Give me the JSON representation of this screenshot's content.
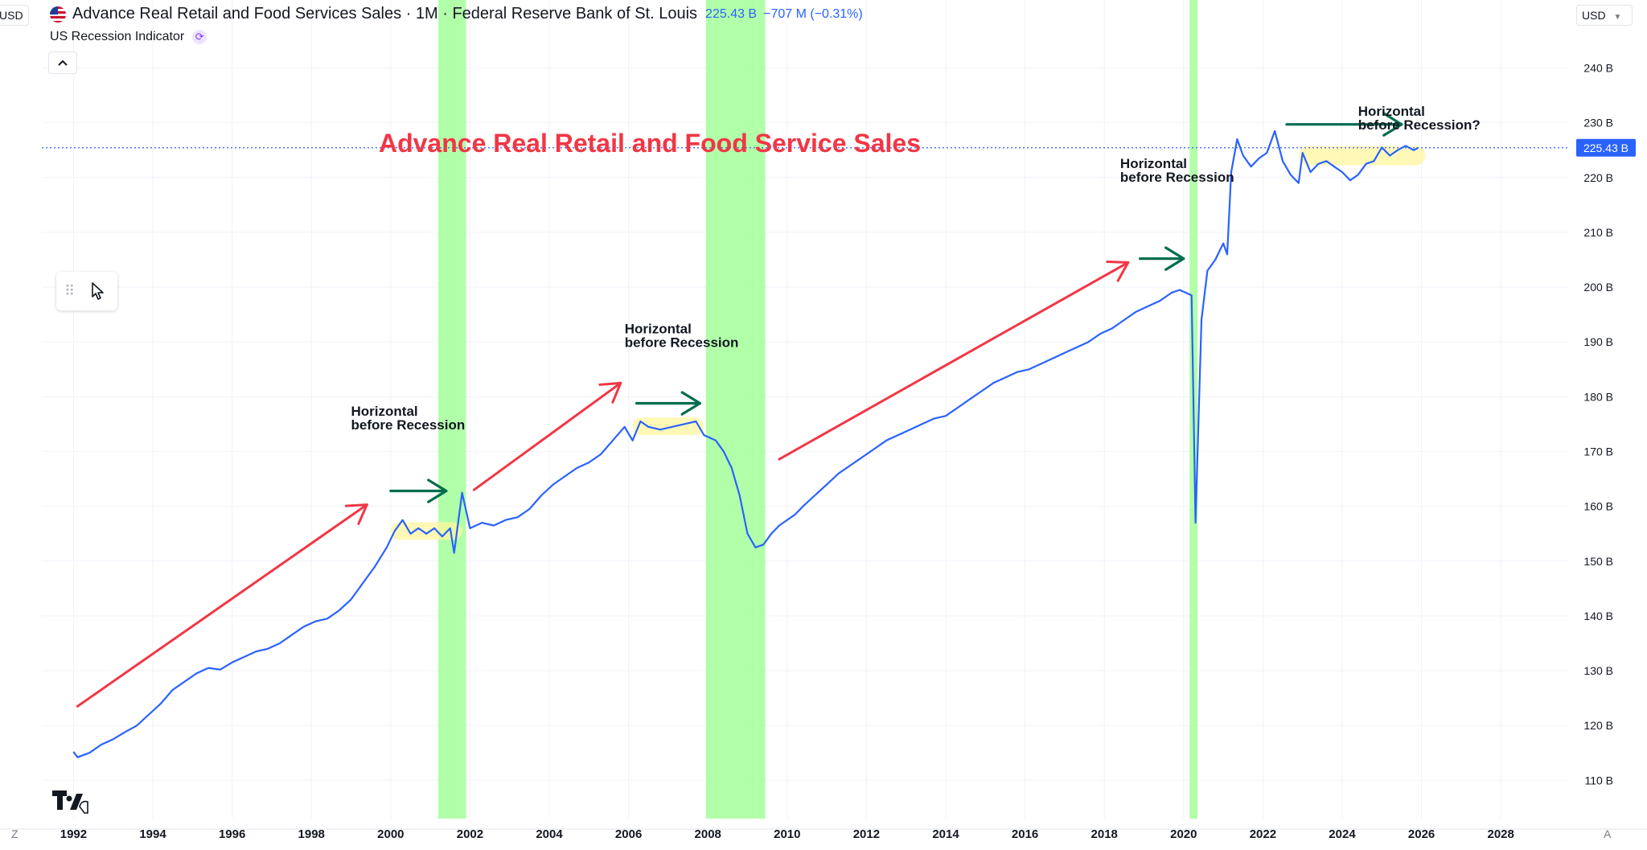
{
  "header": {
    "currency_left": "USD",
    "currency_right": "USD",
    "title": "Advance Real Retail and Food Services Sales · 1M · Federal Reserve Bank of St. Louis",
    "last_value": "225.43 B",
    "change": "−707 M (−0.31%)",
    "indicator": "US Recession Indicator"
  },
  "corners": {
    "bottom_left": "Z",
    "bottom_right": "A"
  },
  "colors": {
    "line": "#2962ff",
    "recession": "#b2ffa9",
    "red_arrow": "#f23645",
    "green_arrow": "#006d4e",
    "highlight": "#fff59d"
  },
  "chart_data": {
    "type": "line",
    "title": "Advance Real Retail and Food Service Sales",
    "xlabel": "",
    "ylabel": "",
    "xlim": [
      1991.2,
      2029.7
    ],
    "ylim": [
      103,
      248
    ],
    "y_ticks": [
      110,
      120,
      130,
      140,
      150,
      160,
      170,
      180,
      190,
      200,
      210,
      220,
      230,
      240
    ],
    "y_tick_labels": [
      "110 B",
      "120 B",
      "130 B",
      "140 B",
      "150 B",
      "160 B",
      "170 B",
      "180 B",
      "190 B",
      "200 B",
      "210 B",
      "220 B",
      "230 B",
      "240 B"
    ],
    "x_ticks": [
      1992,
      1994,
      1996,
      1998,
      2000,
      2002,
      2004,
      2006,
      2008,
      2010,
      2012,
      2014,
      2016,
      2018,
      2020,
      2022,
      2024,
      2026,
      2028
    ],
    "x_tick_labels": [
      "1992",
      "1994",
      "1996",
      "1998",
      "2000",
      "2002",
      "2004",
      "2006",
      "2008",
      "2010",
      "2012",
      "2014",
      "2016",
      "2018",
      "2020",
      "2022",
      "2024",
      "2026",
      "2028"
    ],
    "current_price": 225.43,
    "current_price_label": "225.43 B",
    "series": [
      {
        "name": "Advance Real Retail and Food Services Sales",
        "points": [
          [
            1992.0,
            115.2
          ],
          [
            1992.1,
            114.2
          ],
          [
            1992.4,
            115.0
          ],
          [
            1992.7,
            116.5
          ],
          [
            1993.0,
            117.5
          ],
          [
            1993.3,
            118.8
          ],
          [
            1993.6,
            120.0
          ],
          [
            1993.9,
            122.0
          ],
          [
            1994.2,
            124.0
          ],
          [
            1994.5,
            126.5
          ],
          [
            1994.8,
            128.0
          ],
          [
            1995.1,
            129.5
          ],
          [
            1995.4,
            130.5
          ],
          [
            1995.7,
            130.2
          ],
          [
            1996.0,
            131.5
          ],
          [
            1996.3,
            132.5
          ],
          [
            1996.6,
            133.5
          ],
          [
            1996.9,
            134.0
          ],
          [
            1997.2,
            135.0
          ],
          [
            1997.5,
            136.5
          ],
          [
            1997.8,
            138.0
          ],
          [
            1998.1,
            139.0
          ],
          [
            1998.4,
            139.5
          ],
          [
            1998.7,
            141.0
          ],
          [
            1999.0,
            143.0
          ],
          [
            1999.3,
            146.0
          ],
          [
            1999.6,
            149.0
          ],
          [
            1999.9,
            152.5
          ],
          [
            2000.1,
            155.5
          ],
          [
            2000.3,
            157.5
          ],
          [
            2000.5,
            155.0
          ],
          [
            2000.7,
            156.0
          ],
          [
            2000.9,
            155.0
          ],
          [
            2001.1,
            156.0
          ],
          [
            2001.3,
            154.5
          ],
          [
            2001.5,
            156.0
          ],
          [
            2001.6,
            151.5
          ],
          [
            2001.8,
            162.5
          ],
          [
            2002.0,
            156.0
          ],
          [
            2002.3,
            157.0
          ],
          [
            2002.6,
            156.5
          ],
          [
            2002.9,
            157.5
          ],
          [
            2003.2,
            158.0
          ],
          [
            2003.5,
            159.5
          ],
          [
            2003.8,
            162.0
          ],
          [
            2004.1,
            164.0
          ],
          [
            2004.4,
            165.5
          ],
          [
            2004.7,
            167.0
          ],
          [
            2005.0,
            168.0
          ],
          [
            2005.3,
            169.5
          ],
          [
            2005.6,
            172.0
          ],
          [
            2005.9,
            174.5
          ],
          [
            2006.1,
            172.0
          ],
          [
            2006.3,
            175.5
          ],
          [
            2006.5,
            174.5
          ],
          [
            2006.8,
            174.0
          ],
          [
            2007.1,
            174.5
          ],
          [
            2007.4,
            175.0
          ],
          [
            2007.7,
            175.5
          ],
          [
            2007.9,
            173.0
          ],
          [
            2008.2,
            172.0
          ],
          [
            2008.4,
            170.0
          ],
          [
            2008.6,
            167.0
          ],
          [
            2008.8,
            162.0
          ],
          [
            2009.0,
            155.0
          ],
          [
            2009.2,
            152.5
          ],
          [
            2009.4,
            153.0
          ],
          [
            2009.6,
            155.0
          ],
          [
            2009.8,
            156.5
          ],
          [
            2010.0,
            157.5
          ],
          [
            2010.2,
            158.5
          ],
          [
            2010.4,
            160.0
          ],
          [
            2010.7,
            162.0
          ],
          [
            2011.0,
            164.0
          ],
          [
            2011.3,
            166.0
          ],
          [
            2011.6,
            167.5
          ],
          [
            2011.9,
            169.0
          ],
          [
            2012.2,
            170.5
          ],
          [
            2012.5,
            172.0
          ],
          [
            2012.8,
            173.0
          ],
          [
            2013.1,
            174.0
          ],
          [
            2013.4,
            175.0
          ],
          [
            2013.7,
            176.0
          ],
          [
            2014.0,
            176.5
          ],
          [
            2014.3,
            178.0
          ],
          [
            2014.6,
            179.5
          ],
          [
            2014.9,
            181.0
          ],
          [
            2015.2,
            182.5
          ],
          [
            2015.5,
            183.5
          ],
          [
            2015.8,
            184.5
          ],
          [
            2016.1,
            185.0
          ],
          [
            2016.4,
            186.0
          ],
          [
            2016.7,
            187.0
          ],
          [
            2017.0,
            188.0
          ],
          [
            2017.3,
            189.0
          ],
          [
            2017.6,
            190.0
          ],
          [
            2017.9,
            191.5
          ],
          [
            2018.2,
            192.5
          ],
          [
            2018.5,
            194.0
          ],
          [
            2018.8,
            195.5
          ],
          [
            2019.1,
            196.5
          ],
          [
            2019.4,
            197.5
          ],
          [
            2019.7,
            199.0
          ],
          [
            2019.9,
            199.5
          ],
          [
            2020.05,
            199.0
          ],
          [
            2020.2,
            198.5
          ],
          [
            2020.3,
            157.0
          ],
          [
            2020.45,
            194.0
          ],
          [
            2020.6,
            203.0
          ],
          [
            2020.8,
            205.0
          ],
          [
            2021.0,
            208.0
          ],
          [
            2021.1,
            206.0
          ],
          [
            2021.2,
            221.0
          ],
          [
            2021.35,
            227.0
          ],
          [
            2021.5,
            224.0
          ],
          [
            2021.7,
            222.0
          ],
          [
            2021.9,
            223.5
          ],
          [
            2022.1,
            224.5
          ],
          [
            2022.3,
            228.5
          ],
          [
            2022.5,
            223.0
          ],
          [
            2022.7,
            220.5
          ],
          [
            2022.9,
            219.0
          ],
          [
            2023.0,
            224.5
          ],
          [
            2023.2,
            221.0
          ],
          [
            2023.4,
            222.5
          ],
          [
            2023.6,
            223.0
          ],
          [
            2023.8,
            222.0
          ],
          [
            2024.0,
            221.0
          ],
          [
            2024.2,
            219.5
          ],
          [
            2024.4,
            220.5
          ],
          [
            2024.6,
            222.5
          ],
          [
            2024.8,
            223.0
          ],
          [
            2025.0,
            225.5
          ],
          [
            2025.2,
            224.0
          ],
          [
            2025.4,
            225.0
          ],
          [
            2025.6,
            225.8
          ],
          [
            2025.8,
            225.0
          ],
          [
            2025.92,
            225.43
          ]
        ]
      }
    ],
    "recessions": [
      [
        2001.2,
        2001.9
      ],
      [
        2007.95,
        2009.45
      ],
      [
        2020.15,
        2020.35
      ]
    ],
    "annotations": [
      {
        "text_lines": [
          "Horizontal",
          "before Recession"
        ],
        "x": 1999.0,
        "y": 176.5
      },
      {
        "text_lines": [
          "Horizontal",
          "before Recession"
        ],
        "x": 2005.9,
        "y": 191.6
      },
      {
        "text_lines": [
          "Horizontal",
          "before Recession"
        ],
        "x": 2018.4,
        "y": 221.7
      },
      {
        "text_lines": [
          "Horizontal",
          "before Recession?"
        ],
        "x": 2024.4,
        "y": 231.3
      }
    ],
    "red_arrows": [
      [
        1992.1,
        123.5,
        1999.4,
        160.3
      ],
      [
        2002.1,
        163.0,
        2005.8,
        182.5
      ],
      [
        2009.8,
        168.6,
        2018.6,
        204.5
      ]
    ],
    "green_arrows": [
      [
        2000.0,
        162.8,
        2001.4,
        162.8
      ],
      [
        2006.2,
        178.8,
        2007.8,
        178.8
      ],
      [
        2018.9,
        205.2,
        2020.0,
        205.2
      ],
      [
        2022.6,
        229.7,
        2025.5,
        229.7
      ]
    ],
    "highlights": [
      [
        2000.0,
        2001.8,
        155.5,
        3.2
      ],
      [
        2006.1,
        2007.9,
        174.6,
        3.2
      ],
      [
        2022.9,
        2026.1,
        224.0,
        3.5
      ]
    ]
  }
}
